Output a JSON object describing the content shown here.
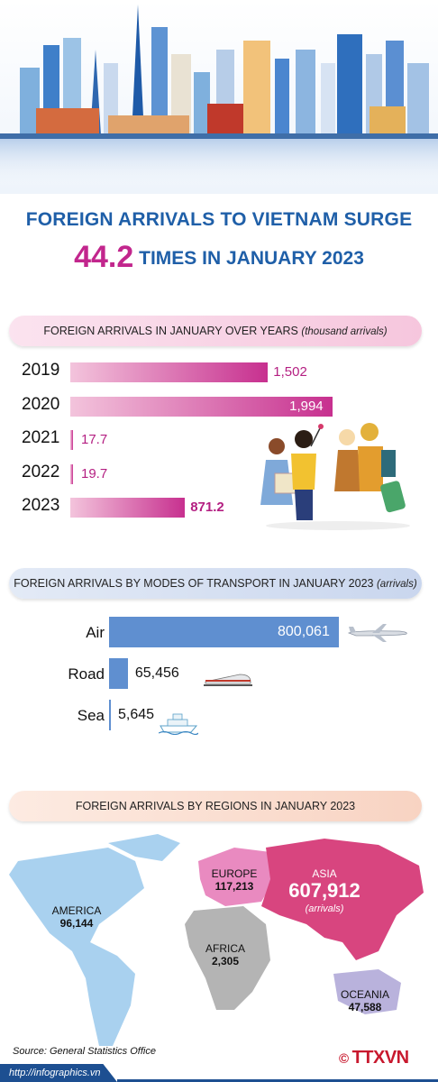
{
  "title": {
    "line1": "FOREIGN ARRIVALS TO VIETNAM SURGE",
    "highlight": "44.2",
    "line2_rest": "TIMES IN JANUARY 2023"
  },
  "sections": {
    "years_label": "FOREIGN ARRIVALS IN JANUARY OVER YEARS",
    "years_unit": "(thousand arrivals)",
    "transport_label": "FOREIGN ARRIVALS BY MODES OF TRANSPORT IN JANUARY 2023",
    "transport_unit": "(arrivals)",
    "regions_label": "FOREIGN ARRIVALS BY REGIONS IN JANUARY 2023"
  },
  "chart_data": [
    {
      "type": "bar",
      "orientation": "horizontal",
      "title": "FOREIGN ARRIVALS IN JANUARY OVER YEARS (thousand arrivals)",
      "categories": [
        "2019",
        "2020",
        "2021",
        "2022",
        "2023"
      ],
      "values": [
        1502,
        1994,
        17.7,
        19.7,
        871.2
      ],
      "value_labels": [
        "1,502",
        "1,994",
        "17.7",
        "19.7",
        "871.2"
      ],
      "xlim": [
        0,
        2000
      ]
    },
    {
      "type": "bar",
      "orientation": "horizontal",
      "title": "FOREIGN ARRIVALS BY MODES OF TRANSPORT IN JANUARY 2023 (arrivals)",
      "categories": [
        "Air",
        "Road",
        "Sea"
      ],
      "values": [
        800061,
        65456,
        5645
      ],
      "value_labels": [
        "800,061",
        "65,456",
        "5,645"
      ],
      "xlim": [
        0,
        800061
      ]
    },
    {
      "type": "table",
      "title": "FOREIGN ARRIVALS BY REGIONS IN JANUARY 2023",
      "regions": [
        {
          "name": "AMERICA",
          "value": 96144,
          "label": "96,144"
        },
        {
          "name": "EUROPE",
          "value": 117213,
          "label": "117,213"
        },
        {
          "name": "ASIA",
          "value": 607912,
          "label": "607,912",
          "note": "(arrivals)"
        },
        {
          "name": "AFRICA",
          "value": 2305,
          "label": "2,305"
        },
        {
          "name": "OCEANIA",
          "value": 47588,
          "label": "47,588"
        }
      ]
    }
  ],
  "source": "Source: General Statistics Office",
  "footer_url": "http://infographics.vn",
  "logo": {
    "symbol": "©",
    "text": "TTXVN"
  },
  "colors": {
    "title_blue": "#1f5fa8",
    "accent_magenta": "#c2268d",
    "transport_bar": "#5f8fd0",
    "america": "#a9d1ef",
    "europe": "#e98ac0",
    "asia": "#d8457f",
    "africa": "#b4b4b4",
    "oceania": "#b9b2dc"
  }
}
